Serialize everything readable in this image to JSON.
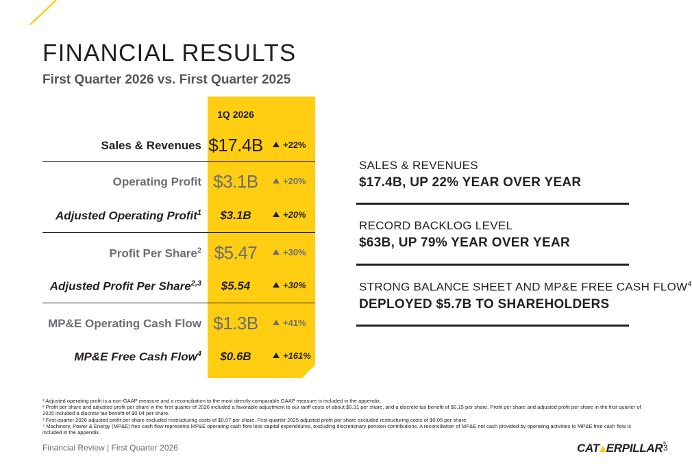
{
  "page": {
    "title": "FINANCIAL RESULTS",
    "subtitle": "First Quarter 2026 vs. First Quarter 2025",
    "accent_color": "#ffcd11"
  },
  "table": {
    "column_header": "1Q 2026",
    "rows": [
      {
        "label": "Sales & Revenues",
        "sup": "",
        "value": "$17.4B",
        "change": "+22%",
        "direction": "up"
      },
      {
        "label": "Operating Profit",
        "sup": "",
        "value": "$3.1B",
        "change": "+20%",
        "direction": "up"
      },
      {
        "label": "Adjusted Operating Profit",
        "sup": "1",
        "value": "$3.1B",
        "change": "+20%",
        "direction": "up"
      },
      {
        "label": "Profit Per Share",
        "sup": "2",
        "value": "$5.47",
        "change": "+30%",
        "direction": "up"
      },
      {
        "label": "Adjusted Profit Per Share",
        "sup": "2,3",
        "value": "$5.54",
        "change": "+30%",
        "direction": "up"
      },
      {
        "label": "MP&E Operating Cash Flow",
        "sup": "",
        "value": "$1.3B",
        "change": "+41%",
        "direction": "up"
      },
      {
        "label": "MP&E Free Cash Flow",
        "sup": "4",
        "value": "$0.6B",
        "change": "+161%",
        "direction": "up"
      }
    ]
  },
  "highlights": [
    {
      "label": "SALES & REVENUES",
      "sup": "",
      "value": "$17.4B, UP 22% YEAR OVER YEAR"
    },
    {
      "label": "RECORD BACKLOG LEVEL",
      "sup": "",
      "value": "$63B, UP 79% YEAR OVER YEAR"
    },
    {
      "label": "STRONG BALANCE SHEET AND MP&E FREE CASH FLOW",
      "sup": "4",
      "value": "DEPLOYED $5.7B TO SHAREHOLDERS"
    }
  ],
  "footnotes": [
    "¹ Adjusted operating profit is a non-GAAP measure and a reconciliation to the most directly comparable GAAP measure is included in the appendix.",
    "² Profit per share and adjusted profit per share in the first quarter of 2026 included a favorable adjustment to our tariff costs of about $0.31 per share, and a discrete tax benefit of $0.15 per share. Profit per share and adjusted profit per share in the first quarter of 2025 included a discrete tax benefit of $0.04 per share.",
    "³ First-quarter 2026 adjusted profit per share excluded restructuring costs of $0.07 per share. First-quarter 2025 adjusted profit per share excluded restructuring costs of $0.05 per share.",
    "⁴ Machinery, Power & Energy (MP&E) free cash flow represents MP&E operating cash flow less capital expenditures, excluding discretionary pension contributions. A reconciliation of MP&E net cash provided by operating activities to MP&E free cash flow is included in the appendix."
  ],
  "footer": {
    "left": "Financial Review | First Quarter 2026",
    "logo_text_left": "CAT",
    "logo_text_right": "ERPILLAR",
    "logo_mark": "®",
    "page_number": "3"
  }
}
